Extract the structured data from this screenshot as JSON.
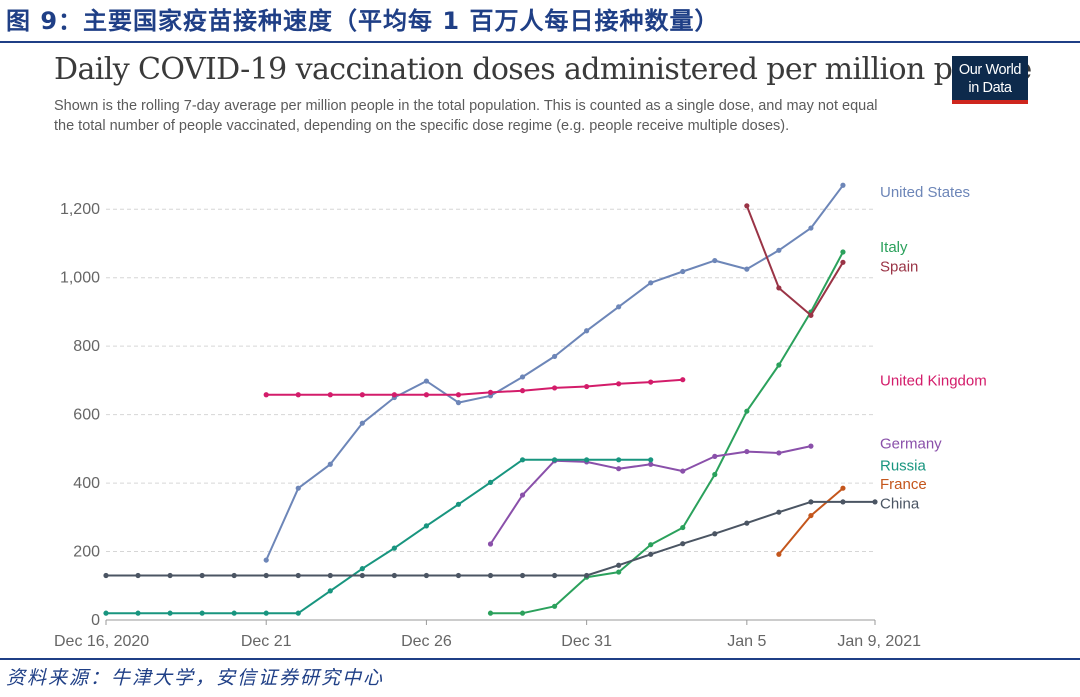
{
  "figure": {
    "caption": "图 9：主要国家疫苗接种速度（平均每 1 百万人每日接种数量）",
    "source": "资料来源：牛津大学，安信证券研究中心"
  },
  "logo": {
    "line1": "Our World",
    "line2": "in Data"
  },
  "chart_data": {
    "type": "line",
    "title": "Daily COVID-19 vaccination doses administered per million people",
    "subtitle": "Shown is the rolling 7-day average per million people in the total population. This is counted as a single dose, and may not equal the total number of people vaccinated, depending on the specific dose regime (e.g. people receive multiple doses).",
    "x_start": "Dec 16, 2020",
    "x_end": "Jan 9, 2021",
    "xlim": [
      0,
      24
    ],
    "ylim": [
      0,
      1300
    ],
    "grid": true,
    "legend": "right, labels at line ends",
    "x_ticks": [
      {
        "label": "Dec 16, 2020",
        "x": 0
      },
      {
        "label": "Dec 21",
        "x": 5
      },
      {
        "label": "Dec 26",
        "x": 10
      },
      {
        "label": "Dec 31",
        "x": 15
      },
      {
        "label": "Jan 5",
        "x": 20
      },
      {
        "label": "Jan 9, 2021",
        "x": 24
      }
    ],
    "y_ticks": [
      {
        "label": "0",
        "y": 0
      },
      {
        "label": "200",
        "y": 200
      },
      {
        "label": "400",
        "y": 400
      },
      {
        "label": "600",
        "y": 600
      },
      {
        "label": "800",
        "y": 800
      },
      {
        "label": "1,000",
        "y": 1000
      },
      {
        "label": "1,200",
        "y": 1200
      }
    ],
    "series": [
      {
        "name": "United States",
        "color": "#6d86b8",
        "label_y": 1250,
        "x": [
          5,
          6,
          7,
          8,
          9,
          10,
          11,
          12,
          13,
          14,
          15,
          16,
          17,
          18,
          19,
          20,
          21,
          22,
          23
        ],
        "y": [
          175,
          385,
          455,
          575,
          650,
          698,
          635,
          655,
          710,
          770,
          845,
          915,
          985,
          1018,
          1050,
          1025,
          1080,
          1145,
          1270
        ]
      },
      {
        "name": "Italy",
        "color": "#2ba15c",
        "label_y": 1090,
        "x": [
          12,
          13,
          14,
          15,
          16,
          17,
          18,
          19,
          20,
          21,
          22,
          23
        ],
        "y": [
          20,
          20,
          40,
          125,
          140,
          220,
          270,
          425,
          610,
          745,
          900,
          1075
        ]
      },
      {
        "name": "Spain",
        "color": "#9a3446",
        "label_y": 1032,
        "x": [
          20,
          21,
          22,
          23
        ],
        "y": [
          1210,
          970,
          890,
          1045
        ]
      },
      {
        "name": "United Kingdom",
        "color": "#d31c6a",
        "label_y": 700,
        "x": [
          5,
          6,
          7,
          8,
          9,
          10,
          11,
          12,
          13,
          14,
          15,
          16,
          17,
          18
        ],
        "y": [
          658,
          658,
          658,
          658,
          658,
          658,
          658,
          665,
          670,
          678,
          682,
          690,
          695,
          702
        ]
      },
      {
        "name": "Germany",
        "color": "#8a50aa",
        "label_y": 515,
        "x": [
          12,
          13,
          14,
          15,
          16,
          17,
          18,
          19,
          20,
          21,
          22
        ],
        "y": [
          222,
          365,
          465,
          462,
          442,
          455,
          435,
          478,
          492,
          488,
          508
        ]
      },
      {
        "name": "Russia",
        "color": "#18957f",
        "label_y": 452,
        "x": [
          0,
          1,
          2,
          3,
          4,
          5,
          6,
          7,
          8,
          9,
          10,
          11,
          12,
          13,
          14,
          15,
          16,
          17
        ],
        "y": [
          20,
          20,
          20,
          20,
          20,
          20,
          20,
          85,
          150,
          210,
          275,
          338,
          402,
          468,
          468,
          468,
          468,
          468
        ]
      },
      {
        "name": "France",
        "color": "#c4561c",
        "label_y": 398,
        "x": [
          21,
          22,
          23
        ],
        "y": [
          192,
          305,
          385
        ]
      },
      {
        "name": "China",
        "color": "#4b5563",
        "label_y": 340,
        "x": [
          0,
          1,
          2,
          3,
          4,
          5,
          6,
          7,
          8,
          9,
          10,
          11,
          12,
          13,
          14,
          15,
          16,
          17,
          18,
          19,
          20,
          21,
          22,
          23,
          24
        ],
        "y": [
          130,
          130,
          130,
          130,
          130,
          130,
          130,
          130,
          130,
          130,
          130,
          130,
          130,
          130,
          130,
          130,
          160,
          192,
          223,
          252,
          283,
          315,
          345,
          345,
          345
        ]
      }
    ]
  }
}
